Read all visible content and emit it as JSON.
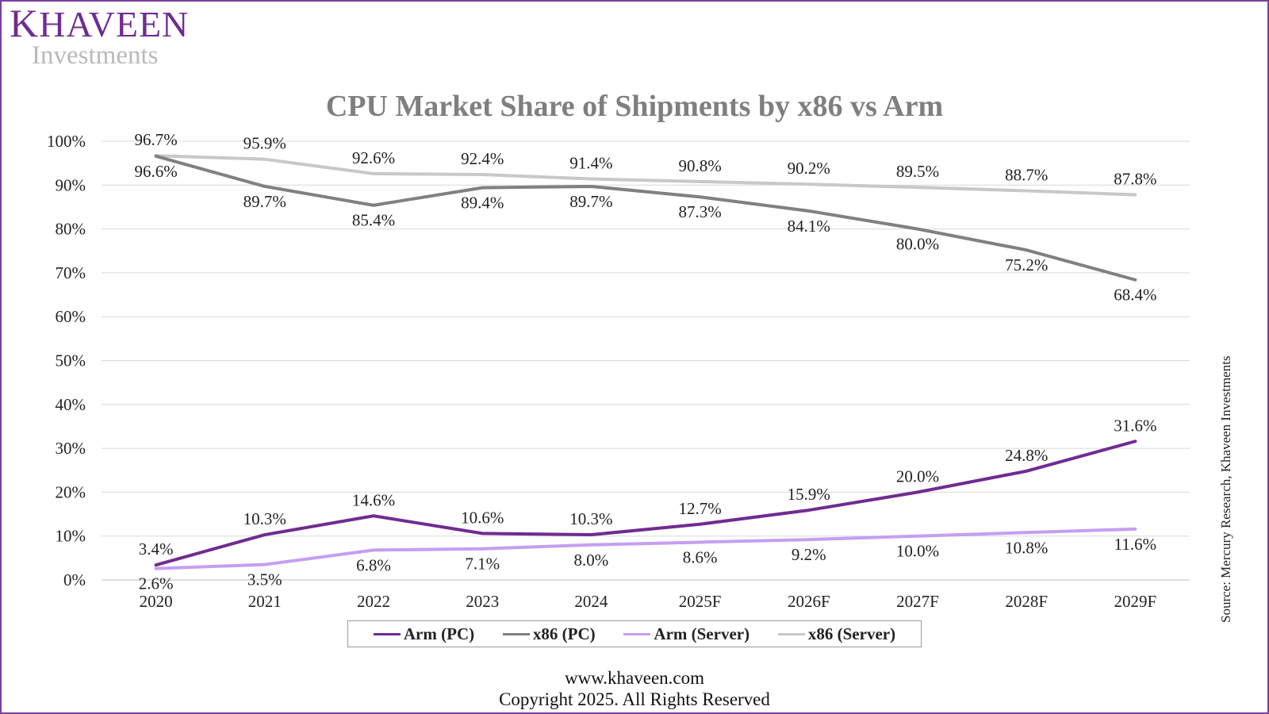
{
  "brand": {
    "logo_initial": "K",
    "logo_rest": "HAVEEN",
    "logo_sub": "Investments",
    "brand_color": "#6f2c91"
  },
  "footer": {
    "website": "www.khaveen.com",
    "copyright": "Copyright 2025. All Rights Reserved"
  },
  "source_note": "Source: Mercury Research, Khaveen Investments",
  "chart_data": {
    "type": "line",
    "title": "CPU Market Share of Shipments by x86 vs Arm",
    "xlabel": "",
    "ylabel": "",
    "ylim": [
      0,
      100
    ],
    "ytick_step": 10,
    "y_unit": "%",
    "grid": true,
    "legend_position": "bottom",
    "categories": [
      "2020",
      "2021",
      "2022",
      "2023",
      "2024",
      "2025F",
      "2026F",
      "2027F",
      "2028F",
      "2029F"
    ],
    "series": [
      {
        "name": "Arm (PC)",
        "color": "#6f2c91",
        "values": [
          3.4,
          10.3,
          14.6,
          10.6,
          10.3,
          12.7,
          15.9,
          20.0,
          24.8,
          31.6
        ],
        "labels": [
          "3.4%",
          "10.3%",
          "14.6%",
          "10.6%",
          "10.3%",
          "12.7%",
          "15.9%",
          "20.0%",
          "24.8%",
          "31.6%"
        ]
      },
      {
        "name": "x86 (PC)",
        "color": "#808080",
        "values": [
          96.6,
          89.7,
          85.4,
          89.4,
          89.7,
          87.3,
          84.1,
          80.0,
          75.2,
          68.4
        ],
        "labels": [
          "96.6%",
          "89.7%",
          "85.4%",
          "89.4%",
          "89.7%",
          "87.3%",
          "84.1%",
          "80.0%",
          "75.2%",
          "68.4%"
        ]
      },
      {
        "name": "Arm (Server)",
        "color": "#c59ef2",
        "values": [
          2.6,
          3.5,
          6.8,
          7.1,
          8.0,
          8.6,
          9.2,
          10.0,
          10.8,
          11.6
        ],
        "labels": [
          "2.6%",
          "3.5%",
          "6.8%",
          "7.1%",
          "8.0%",
          "8.6%",
          "9.2%",
          "10.0%",
          "10.8%",
          "11.6%"
        ]
      },
      {
        "name": "x86 (Server)",
        "color": "#c8c8c8",
        "values": [
          96.7,
          95.9,
          92.6,
          92.4,
          91.4,
          90.8,
          90.2,
          89.5,
          88.7,
          87.8
        ],
        "labels": [
          "96.7%",
          "95.9%",
          "92.6%",
          "92.4%",
          "91.4%",
          "90.8%",
          "90.2%",
          "89.5%",
          "88.7%",
          "87.8%"
        ]
      }
    ]
  }
}
